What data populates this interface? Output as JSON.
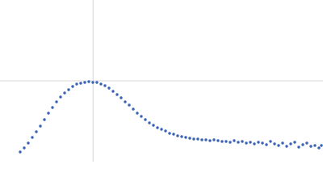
{
  "chart_data": {
    "type": "scatter",
    "x": [
      0.375,
      0.45,
      0.525,
      0.6,
      0.675,
      0.75,
      0.825,
      0.9,
      0.975,
      1.05,
      1.125,
      1.2,
      1.275,
      1.35,
      1.425,
      1.5,
      1.575,
      1.65,
      1.725,
      1.8,
      1.875,
      1.95,
      2.025,
      2.1,
      2.175,
      2.25,
      2.325,
      2.4,
      2.475,
      2.55,
      2.625,
      2.7,
      2.775,
      2.85,
      2.925,
      3,
      3.075,
      3.15,
      3.225,
      3.3,
      3.375,
      3.45,
      3.525,
      3.6,
      3.675,
      3.75,
      3.825,
      3.9,
      3.975,
      4.05,
      4.125,
      4.2,
      4.275,
      4.35,
      4.425,
      4.5,
      4.575,
      4.65,
      4.725,
      4.8,
      4.875,
      4.95,
      5.025,
      5.1,
      5.175,
      5.25,
      5.325,
      5.4,
      5.475,
      5.55,
      5.625,
      5.7,
      5.775,
      5.85,
      5.925,
      5.97
    ],
    "values": [
      0.132,
      0.187,
      0.253,
      0.33,
      0.407,
      0.484,
      0.572,
      0.66,
      0.737,
      0.814,
      0.88,
      0.935,
      0.979,
      1.023,
      1.056,
      1.067,
      1.078,
      1.089,
      1.078,
      1.078,
      1.056,
      1.034,
      1.001,
      0.957,
      0.913,
      0.869,
      0.814,
      0.77,
      0.715,
      0.66,
      0.616,
      0.572,
      0.528,
      0.495,
      0.462,
      0.44,
      0.418,
      0.385,
      0.374,
      0.352,
      0.341,
      0.33,
      0.319,
      0.308,
      0.308,
      0.297,
      0.297,
      0.286,
      0.297,
      0.286,
      0.275,
      0.275,
      0.264,
      0.286,
      0.264,
      0.275,
      0.253,
      0.264,
      0.242,
      0.264,
      0.253,
      0.231,
      0.275,
      0.242,
      0.22,
      0.253,
      0.209,
      0.242,
      0.264,
      0.198,
      0.231,
      0.253,
      0.209,
      0.22,
      0.187,
      0.22
    ],
    "color": "#3a63b8",
    "xlim": [
      0,
      6
    ],
    "ylim": [
      0,
      2.2
    ],
    "reference_lines": {
      "x": 1.73,
      "y": 1.1
    }
  }
}
